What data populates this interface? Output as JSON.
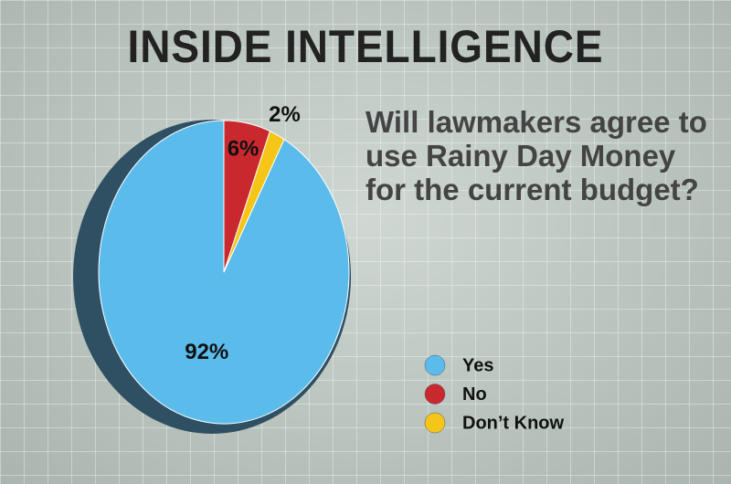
{
  "chart_data": {
    "type": "pie",
    "title": "INSIDE INTELLIGENCE",
    "subtitle": "Will lawmakers agree to use Rainy Day Money for the current budget?",
    "categories": [
      "Yes",
      "No",
      "Don’t Know"
    ],
    "values": [
      92,
      6,
      2
    ],
    "value_labels": [
      "92%",
      "6%",
      "2%"
    ],
    "colors": [
      "#5bbcec",
      "#c8282e",
      "#f5c518"
    ]
  }
}
